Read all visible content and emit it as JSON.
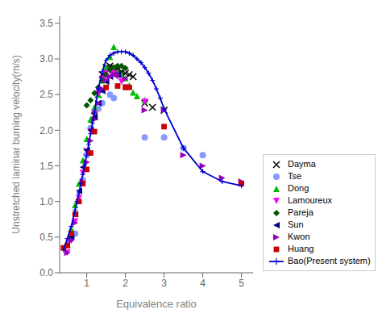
{
  "chart_data": {
    "type": "scatter",
    "xlabel": "Equivalence ratio",
    "ylabel": "Unstretched laminar burning velocity(m/s)",
    "xlim": [
      0.3,
      5.3
    ],
    "ylim": [
      0.0,
      3.6
    ],
    "xticks": [
      1,
      2,
      3,
      4,
      5
    ],
    "yticks": [
      {
        "value": 0,
        "label": "0.0"
      },
      0.5,
      {
        "value": 1,
        "label": "1.0"
      },
      1.5,
      {
        "value": 2,
        "label": "2.0"
      },
      2.5,
      {
        "value": 3,
        "label": "3.0"
      },
      3.5
    ],
    "grid": false,
    "legend": "lower right",
    "series": [
      {
        "name": "Dayma",
        "type": "scatter",
        "marker": "x",
        "color": "#000000",
        "x": [
          1.0,
          1.2,
          1.3,
          1.4,
          1.5,
          1.6,
          1.7,
          1.8,
          1.9,
          2.0,
          2.1,
          2.2,
          2.5,
          2.7,
          3.0
        ],
        "values": [
          1.7,
          2.2,
          2.5,
          2.78,
          2.88,
          2.9,
          2.88,
          2.85,
          2.82,
          2.8,
          2.78,
          2.75,
          2.38,
          2.32,
          2.28
        ]
      },
      {
        "name": "Tse",
        "type": "scatter",
        "marker": "circle",
        "color": "#8899ff",
        "x": [
          0.7,
          0.9,
          1.0,
          1.1,
          1.3,
          1.4,
          1.6,
          1.7,
          2.5,
          3.0,
          3.5,
          4.0
        ],
        "values": [
          0.55,
          1.3,
          1.65,
          2.03,
          2.3,
          2.38,
          2.5,
          2.45,
          1.9,
          1.9,
          1.75,
          1.65
        ]
      },
      {
        "name": "Dong",
        "type": "scatter",
        "marker": "triangle_up",
        "color": "#00bb00",
        "x": [
          0.5,
          0.6,
          0.7,
          0.8,
          0.9,
          1.0,
          1.1,
          1.2,
          1.3,
          1.4,
          1.5,
          1.6,
          1.7,
          1.8,
          1.9,
          2.0,
          2.1,
          2.2,
          2.3,
          2.5
        ],
        "values": [
          0.4,
          0.62,
          0.95,
          1.25,
          1.58,
          1.88,
          2.15,
          2.32,
          2.5,
          2.7,
          2.88,
          3.03,
          3.17,
          2.82,
          2.78,
          2.73,
          2.63,
          2.53,
          2.48,
          2.42
        ]
      },
      {
        "name": "Lamoureux",
        "type": "scatter",
        "marker": "triangle_down",
        "color": "#ff00ff",
        "x": [
          0.5,
          0.6,
          0.7,
          0.8,
          0.9,
          1.0,
          1.1,
          1.2,
          1.3,
          1.4,
          1.5,
          1.6,
          1.7,
          1.8,
          1.9,
          2.0,
          2.5
        ],
        "values": [
          0.28,
          0.45,
          0.72,
          1.05,
          1.4,
          1.7,
          1.98,
          2.23,
          2.52,
          2.72,
          2.8,
          2.83,
          2.8,
          2.75,
          2.68,
          2.6,
          2.4
        ]
      },
      {
        "name": "Pareja",
        "type": "scatter",
        "marker": "diamond",
        "color": "#005500",
        "x": [
          1.0,
          1.1,
          1.2,
          1.3,
          1.4,
          1.5,
          1.6,
          1.7,
          1.8,
          1.9,
          2.0
        ],
        "values": [
          2.35,
          2.42,
          2.52,
          2.6,
          2.7,
          2.78,
          2.85,
          2.88,
          2.9,
          2.9,
          2.87
        ]
      },
      {
        "name": "Sun",
        "type": "scatter",
        "marker": "triangle_left",
        "color": "#000077",
        "x": [
          0.6,
          0.7,
          0.8,
          0.9,
          1.0,
          1.1,
          1.2,
          1.3,
          1.4,
          1.5,
          1.6,
          1.7,
          1.8
        ],
        "values": [
          0.5,
          0.82,
          1.15,
          1.48,
          1.72,
          2.0,
          2.18,
          2.38,
          2.55,
          2.68,
          2.75,
          2.78,
          2.78
        ]
      },
      {
        "name": "Kwon",
        "type": "scatter",
        "marker": "triangle_right",
        "color": "#9900bb",
        "x": [
          0.5,
          0.6,
          0.7,
          0.8,
          0.9,
          1.0,
          1.1,
          1.2,
          1.3,
          1.4,
          1.5,
          1.6,
          1.7,
          1.8,
          2.0,
          2.5,
          3.0,
          3.5,
          4.0,
          4.5,
          5.0
        ],
        "values": [
          0.28,
          0.45,
          0.7,
          1.0,
          1.28,
          1.55,
          1.85,
          2.15,
          2.38,
          2.58,
          2.7,
          2.75,
          2.78,
          2.78,
          2.72,
          2.28,
          2.28,
          1.65,
          1.5,
          1.33,
          1.28
        ]
      },
      {
        "name": "Huang",
        "type": "scatter",
        "marker": "square",
        "color": "#cc0000",
        "x": [
          0.4,
          0.5,
          0.6,
          0.7,
          0.8,
          0.9,
          1.0,
          1.1,
          1.2,
          1.5,
          1.8,
          2.0,
          2.1,
          3.0,
          5.0
        ],
        "values": [
          0.35,
          0.38,
          0.55,
          0.82,
          1.0,
          1.25,
          1.45,
          1.68,
          1.98,
          2.6,
          2.62,
          2.6,
          2.6,
          2.05,
          1.25
        ]
      },
      {
        "name": "Bao(Present system)",
        "type": "line",
        "marker": "plus",
        "line_style": "solid",
        "color": "#0000cc",
        "x": [
          0.4,
          0.5,
          0.6,
          0.7,
          0.75,
          0.8,
          0.85,
          0.9,
          0.95,
          1.0,
          1.05,
          1.1,
          1.15,
          1.2,
          1.3,
          1.4,
          1.5,
          1.6,
          1.7,
          1.8,
          1.9,
          2.0,
          2.1,
          2.2,
          2.3,
          2.4,
          2.5,
          2.6,
          2.7,
          2.8,
          2.9,
          3.0,
          3.5,
          4.0,
          4.5,
          5.0
        ],
        "values": [
          0.32,
          0.48,
          0.65,
          0.88,
          1.0,
          1.12,
          1.25,
          1.38,
          1.52,
          1.65,
          1.8,
          1.95,
          2.1,
          2.25,
          2.58,
          2.82,
          2.98,
          3.05,
          3.08,
          3.1,
          3.1,
          3.1,
          3.08,
          3.05,
          3.0,
          2.95,
          2.88,
          2.8,
          2.7,
          2.58,
          2.45,
          2.3,
          1.75,
          1.42,
          1.28,
          1.22
        ]
      }
    ]
  }
}
